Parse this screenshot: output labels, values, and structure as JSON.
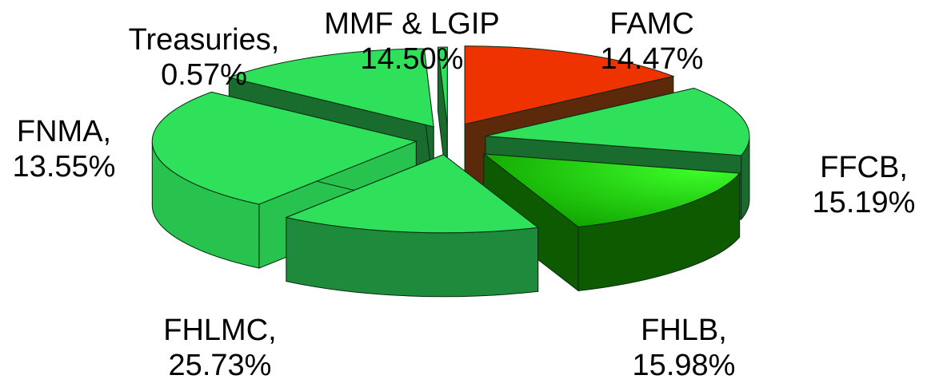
{
  "chart_data": {
    "type": "pie",
    "style": "3d-exploded",
    "slices": [
      {
        "label": "MMF & LGIP",
        "value": 14.5,
        "display_name": "MMF & LGIP",
        "display_value": "14.50%",
        "color": "#EE3300",
        "side_color": "#5C2A0A"
      },
      {
        "label": "FAMC",
        "value": 14.47,
        "display_name": "FAMC",
        "display_value": "14.47%",
        "color": "#2EE05A",
        "side_color": "#1A6B2E"
      },
      {
        "label": "FFCB",
        "value": 15.19,
        "display_name": "FFCB,",
        "display_value": "15.19%",
        "color": "#22D400",
        "side_color": "#0E5A00"
      },
      {
        "label": "FHLB",
        "value": 15.98,
        "display_name": "FHLB,",
        "display_value": "15.98%",
        "color": "#2EE05A",
        "side_color": "#1E8A3C"
      },
      {
        "label": "FHLMC",
        "value": 25.73,
        "display_name": "FHLMC,",
        "display_value": "25.73%",
        "color": "#2EE05A",
        "side_color": "#28C24E"
      },
      {
        "label": "FNMA",
        "value": 13.55,
        "display_name": "FNMA,",
        "display_value": "13.55%",
        "color": "#2EE05A",
        "side_color": "#1A6B2E"
      },
      {
        "label": "Treasuries",
        "value": 0.57,
        "display_name": "Treasuries,",
        "display_value": "0.57%",
        "color": "#2EE05A",
        "side_color": "#1A6B2E"
      }
    ]
  }
}
